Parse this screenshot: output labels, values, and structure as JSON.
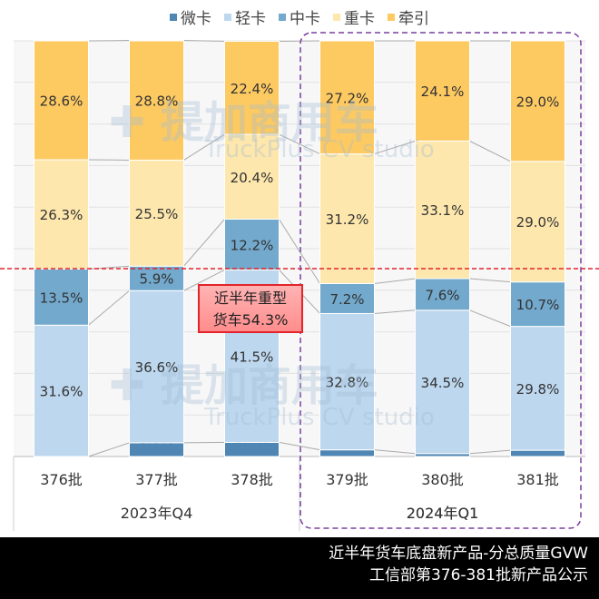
{
  "chart_data": {
    "type": "bar",
    "stacked": "percent",
    "categories": [
      "376批",
      "377批",
      "378批",
      "379批",
      "380批",
      "381批"
    ],
    "groups": [
      {
        "label": "2023年Q4",
        "categories": [
          "376批",
          "377批",
          "378批"
        ]
      },
      {
        "label": "2024年Q1",
        "categories": [
          "379批",
          "380批",
          "381批"
        ]
      }
    ],
    "series": [
      {
        "name": "微卡",
        "color": "#4f86b3",
        "values": [
          0,
          3.3,
          3.4,
          1.6,
          0.7,
          1.5
        ]
      },
      {
        "name": "轻卡",
        "color": "#bdd7ee",
        "values": [
          31.6,
          36.6,
          41.5,
          32.8,
          34.5,
          29.8
        ]
      },
      {
        "name": "中卡",
        "color": "#72a9cc",
        "values": [
          13.5,
          5.9,
          12.2,
          7.2,
          7.6,
          10.7
        ]
      },
      {
        "name": "重卡",
        "color": "#fde7ad",
        "values": [
          26.3,
          25.5,
          20.4,
          31.2,
          33.1,
          29.0
        ]
      },
      {
        "name": "牵引",
        "color": "#fdca62",
        "values": [
          28.6,
          28.8,
          22.4,
          27.2,
          24.1,
          29.0
        ]
      }
    ],
    "ylim": [
      0,
      100
    ],
    "grid": true,
    "legend": "top",
    "reference_line": {
      "value": 54.3,
      "color": "#e3242b",
      "style": "dashed"
    },
    "annotation": {
      "line1": "近半年重型",
      "line2": "货车54.3%"
    },
    "highlight": {
      "group": "2024年Q1",
      "color": "#7a3fa0"
    }
  },
  "watermark": {
    "cn": "提加商用车",
    "en": "TruckPlus CV studio"
  },
  "footer": {
    "line1": "近半年货车底盘新产品-分总质量GVW",
    "line2": "工信部第376-381批新产品公示"
  }
}
